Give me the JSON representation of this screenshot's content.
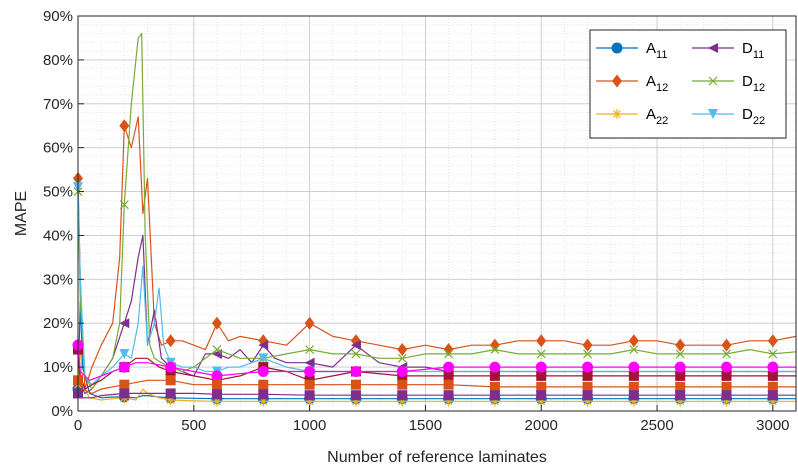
{
  "chart_data": {
    "type": "line",
    "xlabel": "Number of reference laminates",
    "ylabel": "MAPE",
    "xlim": [
      0,
      3100
    ],
    "ylim": [
      0,
      90
    ],
    "x_ticks": [
      0,
      500,
      1000,
      1500,
      2000,
      2500,
      3000
    ],
    "x_tick_labels": [
      "0",
      "500",
      "1000",
      "1500",
      "2000",
      "2500",
      "3000"
    ],
    "y_ticks": [
      0,
      10,
      20,
      30,
      40,
      50,
      60,
      70,
      80,
      90
    ],
    "y_tick_labels": [
      "0%",
      "10%",
      "20%",
      "30%",
      "40%",
      "50%",
      "60%",
      "70%",
      "80%",
      "90%"
    ],
    "grid": true,
    "minor_grid": true,
    "legend_position": "top-right",
    "legend_columns": 2,
    "colors": {
      "A11": "#0072BD",
      "A12": "#D95319",
      "A22": "#EDB120",
      "D11": "#7E2F8E",
      "D12": "#77AC30",
      "D22": "#4DBEEE",
      "extra": "#A2142F"
    },
    "series": [
      {
        "key": "A11",
        "name": "A11",
        "name_main": "A",
        "name_sub": "11",
        "color": "#0072BD",
        "marker": "circle",
        "x": [
          0,
          10,
          20,
          50,
          100,
          150,
          200,
          250,
          280,
          300,
          350,
          400,
          500,
          600,
          700,
          800,
          900,
          1000,
          1200,
          1400,
          1600,
          1800,
          2000,
          2200,
          2400,
          2600,
          2800,
          3000,
          3100
        ],
        "y": [
          5,
          25,
          10,
          4,
          3,
          3.2,
          3.2,
          3,
          3.5,
          3.5,
          3.2,
          3,
          2.9,
          2.8,
          2.8,
          2.8,
          2.8,
          2.8,
          2.8,
          2.8,
          2.8,
          2.8,
          2.8,
          2.8,
          2.8,
          2.8,
          2.8,
          2.8,
          2.8
        ]
      },
      {
        "key": "A12",
        "name": "A12",
        "name_main": "A",
        "name_sub": "12",
        "color": "#D95319",
        "marker": "diamond",
        "x": [
          0,
          10,
          30,
          60,
          100,
          150,
          180,
          200,
          230,
          260,
          280,
          300,
          330,
          360,
          400,
          450,
          500,
          550,
          600,
          650,
          700,
          800,
          900,
          1000,
          1100,
          1200,
          1300,
          1400,
          1500,
          1600,
          1700,
          1800,
          1900,
          2000,
          2100,
          2200,
          2300,
          2400,
          2500,
          2600,
          2700,
          2800,
          2900,
          3000,
          3100
        ],
        "y": [
          53,
          30,
          5,
          10,
          15,
          20,
          35,
          65,
          60,
          67,
          45,
          53,
          20,
          15,
          16,
          16,
          15,
          14,
          20,
          16,
          17,
          16,
          15,
          20,
          17,
          16,
          15,
          14,
          15,
          14,
          15,
          15,
          16,
          16,
          16,
          15,
          15,
          16,
          16,
          15,
          15,
          15,
          16,
          16,
          17
        ]
      },
      {
        "key": "A22",
        "name": "A22",
        "name_main": "A",
        "name_sub": "22",
        "color": "#EDB120",
        "marker": "asterisk",
        "x": [
          0,
          10,
          20,
          50,
          100,
          150,
          200,
          250,
          280,
          300,
          350,
          400,
          500,
          600,
          700,
          800,
          900,
          1000,
          1200,
          1400,
          1600,
          1800,
          2000,
          2200,
          2400,
          2600,
          2800,
          3000,
          3100
        ],
        "y": [
          6,
          15,
          6,
          3,
          2.5,
          2.8,
          3,
          2.5,
          5,
          4,
          3,
          2.5,
          2.3,
          2.2,
          2.2,
          2.2,
          2.2,
          2.2,
          2.2,
          2.2,
          2.2,
          2.2,
          2.2,
          2.2,
          2.2,
          2.2,
          2.2,
          2.2,
          2.2
        ]
      },
      {
        "key": "D11",
        "name": "D11",
        "name_main": "D",
        "name_sub": "11",
        "color": "#7E2F8E",
        "marker": "triangle-left",
        "x": [
          0,
          10,
          30,
          60,
          100,
          150,
          200,
          230,
          260,
          280,
          300,
          330,
          360,
          400,
          450,
          500,
          550,
          600,
          650,
          700,
          750,
          800,
          850,
          900,
          1000,
          1100,
          1200,
          1300,
          1400,
          1500,
          1600,
          1800,
          2000,
          2200,
          2400,
          2600,
          2800,
          3000,
          3100
        ],
        "y": [
          15,
          6,
          4,
          5,
          8,
          12,
          20,
          25,
          35,
          40,
          15,
          23,
          12,
          10,
          9,
          8,
          13,
          13,
          12,
          14,
          11,
          15,
          12,
          11,
          11,
          10,
          15,
          11,
          10,
          10,
          9,
          9,
          9,
          9,
          9,
          9,
          9,
          9,
          9
        ]
      },
      {
        "key": "D12",
        "name": "D12",
        "name_main": "D",
        "name_sub": "12",
        "color": "#77AC30",
        "marker": "x",
        "x": [
          0,
          10,
          30,
          60,
          100,
          150,
          180,
          200,
          230,
          260,
          275,
          290,
          310,
          330,
          360,
          400,
          450,
          500,
          550,
          600,
          650,
          700,
          800,
          900,
          1000,
          1100,
          1200,
          1300,
          1400,
          1500,
          1600,
          1700,
          1800,
          1900,
          2000,
          2100,
          2200,
          2300,
          2400,
          2500,
          2600,
          2700,
          2800,
          2900,
          3000,
          3100
        ],
        "y": [
          50,
          25,
          8,
          5,
          8,
          12,
          20,
          47,
          70,
          85,
          86,
          40,
          15,
          12,
          11,
          10,
          9,
          10,
          12,
          14,
          13,
          12,
          12,
          13,
          14,
          13,
          13,
          12,
          12,
          13,
          13,
          13,
          14,
          13,
          13,
          13,
          13,
          13,
          14,
          13,
          13,
          13,
          13,
          14,
          13,
          13.5
        ]
      },
      {
        "key": "D22",
        "name": "D22",
        "name_main": "D",
        "name_sub": "22",
        "color": "#4DBEEE",
        "marker": "triangle-down",
        "x": [
          0,
          10,
          30,
          60,
          100,
          150,
          200,
          230,
          260,
          280,
          300,
          330,
          350,
          370,
          400,
          450,
          500,
          550,
          600,
          650,
          700,
          800,
          900,
          1000,
          1100,
          1200,
          1300,
          1400,
          1600,
          1800,
          2000,
          2200,
          2400,
          2600,
          2800,
          3000,
          3100
        ],
        "y": [
          51,
          30,
          8,
          6,
          8,
          10,
          13,
          12,
          20,
          33,
          15,
          20,
          28,
          15,
          11,
          10,
          10,
          9,
          9,
          10,
          10,
          12,
          10,
          9,
          9,
          9,
          9,
          9,
          9,
          9,
          9,
          9,
          9,
          9,
          9,
          9,
          9
        ]
      },
      {
        "key": "E1",
        "name": "",
        "color": "#A2142F",
        "marker": "square",
        "legend": false,
        "x": [
          0,
          10,
          30,
          60,
          100,
          150,
          200,
          250,
          300,
          350,
          400,
          500,
          600,
          700,
          800,
          900,
          1000,
          1100,
          1200,
          1400,
          1600,
          1800,
          2000,
          2200,
          2400,
          2600,
          2800,
          3000,
          3100
        ],
        "y": [
          14,
          8,
          5,
          6,
          7,
          9,
          10,
          12,
          12,
          10,
          9,
          8,
          7,
          8,
          10,
          9,
          7,
          8,
          9,
          8,
          8,
          8,
          8,
          8,
          8,
          8,
          8,
          8,
          8
        ]
      },
      {
        "key": "E2",
        "name": "",
        "color": "#FF00FF",
        "marker": "circle",
        "legend": false,
        "x": [
          0,
          10,
          50,
          100,
          150,
          200,
          250,
          300,
          400,
          500,
          600,
          800,
          1000,
          1200,
          1400,
          1600,
          1800,
          2000,
          2200,
          2400,
          2600,
          2800,
          3000,
          3100
        ],
        "y": [
          15,
          9,
          7,
          8,
          9,
          10,
          11,
          11,
          10,
          9,
          8,
          9,
          9,
          9,
          9,
          10,
          10,
          10,
          10,
          10,
          10,
          10,
          10,
          10
        ]
      },
      {
        "key": "E3",
        "name": "",
        "color": "#D95319",
        "marker": "square",
        "legend": false,
        "x": [
          0,
          20,
          60,
          100,
          200,
          300,
          400,
          500,
          600,
          700,
          800,
          1000,
          1200,
          1400,
          1600,
          1800,
          2000,
          2200,
          2400,
          2600,
          2800,
          3000,
          3100
        ],
        "y": [
          7,
          5,
          4,
          5,
          6,
          7,
          7,
          6,
          6,
          6,
          6,
          6,
          6,
          6,
          6,
          5.5,
          5.5,
          5.5,
          5.5,
          5.5,
          5.5,
          5.5,
          5.5
        ]
      },
      {
        "key": "E4",
        "name": "",
        "color": "#7E2F8E",
        "marker": "square",
        "legend": false,
        "x": [
          0,
          20,
          60,
          100,
          200,
          300,
          400,
          500,
          600,
          800,
          1000,
          1200,
          1400,
          1600,
          1800,
          2000,
          2200,
          2400,
          2600,
          2800,
          3000,
          3100
        ],
        "y": [
          4,
          3,
          3,
          3.5,
          4,
          4,
          4,
          4,
          3.8,
          3.8,
          3.6,
          3.6,
          3.6,
          3.6,
          3.6,
          3.6,
          3.6,
          3.6,
          3.6,
          3.6,
          3.6,
          3.6
        ]
      }
    ]
  }
}
